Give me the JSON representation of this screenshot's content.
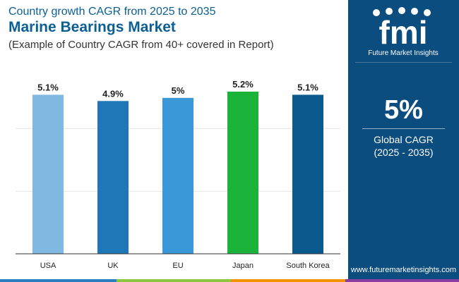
{
  "header": {
    "line1": "Country growth CAGR from 2025 to 2035",
    "title": "Marine Bearings Market",
    "subtitle": "(Example of Country CAGR from 40+ covered in Report)"
  },
  "chart_data": {
    "type": "bar",
    "categories": [
      "USA",
      "UK",
      "EU",
      "Japan",
      "South Korea"
    ],
    "values": [
      5.1,
      4.9,
      5,
      5.2,
      5.1
    ],
    "value_labels": [
      "5.1%",
      "4.9%",
      "5%",
      "5.2%",
      "5.1%"
    ],
    "bar_colors": [
      "#7fb8e0",
      "#1f77b8",
      "#3a97d8",
      "#1cb33a",
      "#0b5a8e"
    ],
    "ylim": [
      0,
      5.2
    ],
    "grid": true
  },
  "logo": {
    "mark": "fmi",
    "name": "Future Market Insights"
  },
  "side": {
    "big_value": "5%",
    "label": "Global CAGR",
    "range": "(2025 - 2035)",
    "url": "www.futuremarketinsights.com"
  },
  "colors": {
    "panel": "#0b4d7e",
    "title": "#0b5f95",
    "bottom_bar": [
      "#2a7fc1",
      "#8dc63f",
      "#f39200",
      "#8b3fa3"
    ]
  }
}
